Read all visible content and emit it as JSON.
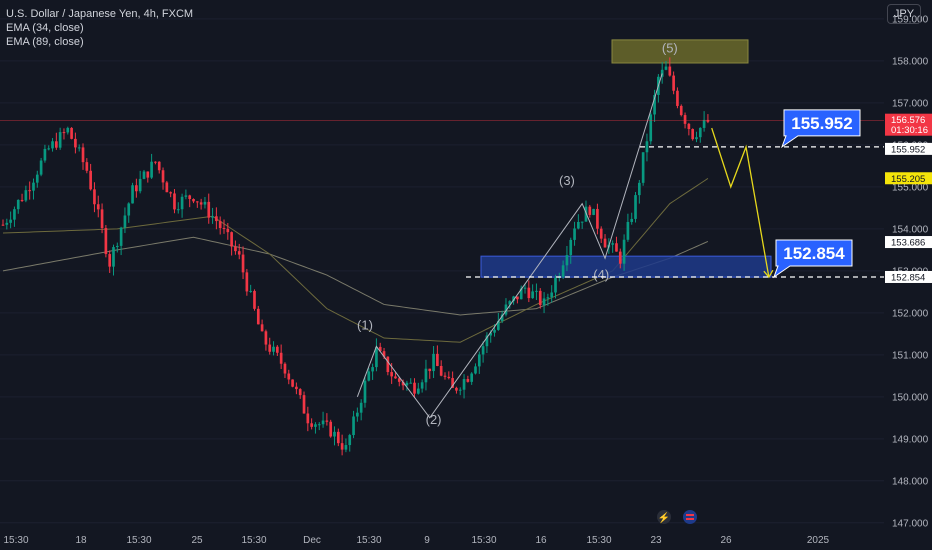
{
  "header": {
    "symbol_line": "U.S. Dollar / Japanese Yen, 4h, FXCM",
    "indicator_1": "EMA (34, close)",
    "indicator_2": "EMA (89, close)",
    "currency_button": "JPY"
  },
  "chart_data": {
    "type": "candlestick",
    "title": "U.S. Dollar / Japanese Yen, 4h, FXCM",
    "ylim": [
      147.0,
      159.3
    ],
    "y_ticks": [
      "159.000",
      "158.000",
      "157.000",
      "156.000",
      "155.000",
      "154.000",
      "153.000",
      "152.000",
      "151.000",
      "150.000",
      "149.000",
      "148.000",
      "147.000"
    ],
    "x_ticks": [
      "15:30",
      "18",
      "15:30",
      "25",
      "15:30",
      "Dec",
      "15:30",
      "9",
      "15:30",
      "16",
      "15:30",
      "23",
      "26",
      "2025"
    ],
    "waypoints": [
      [
        0,
        154.1
      ],
      [
        6,
        154.9
      ],
      [
        12,
        155.9
      ],
      [
        17,
        156.35
      ],
      [
        22,
        155.4
      ],
      [
        28,
        153.2
      ],
      [
        34,
        154.9
      ],
      [
        40,
        155.6
      ],
      [
        45,
        154.6
      ],
      [
        50,
        154.8
      ],
      [
        56,
        154.2
      ],
      [
        62,
        153.3
      ],
      [
        68,
        151.4
      ],
      [
        74,
        150.7
      ],
      [
        80,
        149.5
      ],
      [
        86,
        149.2
      ],
      [
        90,
        148.75
      ],
      [
        95,
        150.3
      ],
      [
        98,
        151.1
      ],
      [
        103,
        150.4
      ],
      [
        108,
        150.25
      ],
      [
        113,
        150.85
      ],
      [
        118,
        150.15
      ],
      [
        122,
        150.5
      ],
      [
        127,
        151.4
      ],
      [
        132,
        152.1
      ],
      [
        137,
        152.6
      ],
      [
        142,
        152.2
      ],
      [
        146,
        153.0
      ],
      [
        150,
        154.1
      ],
      [
        154,
        154.5
      ],
      [
        158,
        153.7
      ],
      [
        162,
        153.3
      ],
      [
        166,
        154.7
      ],
      [
        172,
        157.6
      ],
      [
        174,
        157.8
      ],
      [
        178,
        156.8
      ],
      [
        181,
        156.25
      ],
      [
        185,
        156.55
      ]
    ],
    "ema_34_points": [
      [
        0,
        153.9
      ],
      [
        30,
        154.0
      ],
      [
        55,
        154.3
      ],
      [
        70,
        153.4
      ],
      [
        85,
        152.1
      ],
      [
        100,
        151.4
      ],
      [
        120,
        151.3
      ],
      [
        140,
        152.2
      ],
      [
        160,
        153.0
      ],
      [
        175,
        154.6
      ],
      [
        185,
        155.2
      ]
    ],
    "ema_89_points": [
      [
        0,
        153.0
      ],
      [
        30,
        153.5
      ],
      [
        50,
        153.8
      ],
      [
        70,
        153.4
      ],
      [
        85,
        152.9
      ],
      [
        100,
        152.2
      ],
      [
        120,
        151.95
      ],
      [
        140,
        152.1
      ],
      [
        160,
        152.85
      ],
      [
        175,
        153.3
      ],
      [
        185,
        153.7
      ]
    ],
    "wave_labels": [
      {
        "text": "(1)",
        "x": 95,
        "y": 151.6
      },
      {
        "text": "(2)",
        "x": 113,
        "y": 149.35
      },
      {
        "text": "(3)",
        "x": 148,
        "y": 155.05
      },
      {
        "text": "(4)",
        "x": 157,
        "y": 152.8
      },
      {
        "text": "(5)",
        "x": 175,
        "y": 158.2
      }
    ],
    "elliott_line": [
      [
        93,
        150.0
      ],
      [
        98,
        151.2
      ],
      [
        112,
        149.5
      ],
      [
        152,
        154.6
      ],
      [
        158,
        153.3
      ],
      [
        173,
        157.7
      ]
    ],
    "projection_path": [
      [
        186,
        156.4
      ],
      [
        191,
        155.0
      ],
      [
        195,
        155.95
      ],
      [
        201,
        152.85
      ]
    ],
    "targets": [
      {
        "value": 155.952,
        "label": "155.952",
        "color": "#2962ff"
      },
      {
        "value": 152.854,
        "label": "152.854",
        "color": "#2962ff"
      }
    ],
    "zones": [
      {
        "name": "wave-5-top-box",
        "from": 157.95,
        "to": 158.5,
        "x0": 166,
        "x1": 211,
        "color": "#6b6a2a"
      },
      {
        "name": "support-zone",
        "from": 152.85,
        "to": 153.35,
        "x0": 132,
        "x1": 211,
        "color": "#1e3a8a"
      }
    ],
    "price_labels": [
      {
        "text": "156.576",
        "sub": "01:30:16",
        "color": "#f23645"
      },
      {
        "text": "155.952",
        "color": "#ffffff"
      },
      {
        "text": "155.205",
        "color": "#f5e50a"
      },
      {
        "text": "153.686",
        "color": "#ffffff"
      },
      {
        "text": "152.854",
        "color": "#ffffff"
      }
    ],
    "current_price": 156.576,
    "ema_34_value": 155.205,
    "ema_89_value": 153.686,
    "colors": {
      "up": "#089981",
      "down": "#f23645",
      "ema34": "#6d6a3d",
      "ema89": "#7a7a6a",
      "projection": "#e6d81c",
      "wave": "#b2b5be"
    }
  }
}
